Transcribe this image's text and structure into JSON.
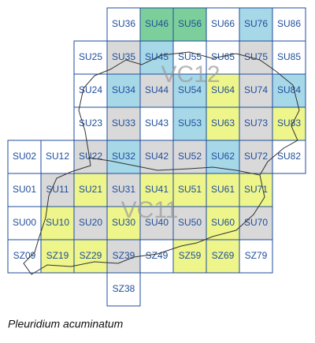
{
  "map": {
    "squares": [
      {
        "label": "SU36",
        "color": "#ffffff"
      },
      {
        "label": "SU46",
        "color": "#7ccf9a"
      },
      {
        "label": "SU56",
        "color": "#7ccf9a"
      },
      {
        "label": "SU66",
        "color": "#ffffff"
      },
      {
        "label": "SU76",
        "color": "#a6d8e8"
      },
      {
        "label": "SU86",
        "color": "#ffffff"
      },
      {
        "label": "SU25",
        "color": "#ffffff"
      },
      {
        "label": "SU35",
        "color": "#d9d9d9"
      },
      {
        "label": "SU45",
        "color": "#a6d8e8"
      },
      {
        "label": "SU55",
        "color": "#ffffff"
      },
      {
        "label": "SU65",
        "color": "#ffffff"
      },
      {
        "label": "SU75",
        "color": "#d9d9d9"
      },
      {
        "label": "SU85",
        "color": "#ffffff"
      },
      {
        "label": "SU24",
        "color": "#ffffff"
      },
      {
        "label": "SU34",
        "color": "#a6d8e8"
      },
      {
        "label": "SU44",
        "color": "#d9d9d9"
      },
      {
        "label": "SU54",
        "color": "#a6d8e8"
      },
      {
        "label": "SU64",
        "color": "#eef58a"
      },
      {
        "label": "SU74",
        "color": "#d9d9d9"
      },
      {
        "label": "SU84",
        "color": "#a6d8e8"
      },
      {
        "label": "SU23",
        "color": "#ffffff"
      },
      {
        "label": "SU33",
        "color": "#d9d9d9"
      },
      {
        "label": "SU43",
        "color": "#ffffff"
      },
      {
        "label": "SU53",
        "color": "#a6d8e8"
      },
      {
        "label": "SU63",
        "color": "#eef58a"
      },
      {
        "label": "SU73",
        "color": "#d9d9d9"
      },
      {
        "label": "SU83",
        "color": "#eef58a"
      },
      {
        "label": "SU02",
        "color": "#ffffff"
      },
      {
        "label": "SU12",
        "color": "#ffffff"
      },
      {
        "label": "SU22",
        "color": "#d9d9d9"
      },
      {
        "label": "SU32",
        "color": "#a6d8e8"
      },
      {
        "label": "SU42",
        "color": "#d9d9d9"
      },
      {
        "label": "SU52",
        "color": "#d9d9d9"
      },
      {
        "label": "SU62",
        "color": "#a6d8e8"
      },
      {
        "label": "SU72",
        "color": "#d9d9d9"
      },
      {
        "label": "SU82",
        "color": "#ffffff"
      },
      {
        "label": "SU01",
        "color": "#ffffff"
      },
      {
        "label": "SU11",
        "color": "#d9d9d9"
      },
      {
        "label": "SU21",
        "color": "#eef58a"
      },
      {
        "label": "SU31",
        "color": "#d9d9d9"
      },
      {
        "label": "SU41",
        "color": "#eef58a"
      },
      {
        "label": "SU51",
        "color": "#eef58a"
      },
      {
        "label": "SU61",
        "color": "#eef58a"
      },
      {
        "label": "SU71",
        "color": "#eef58a"
      },
      {
        "label": "SU00",
        "color": "#ffffff"
      },
      {
        "label": "SU10",
        "color": "#eef58a"
      },
      {
        "label": "SU20",
        "color": "#d9d9d9"
      },
      {
        "label": "SU30",
        "color": "#eef58a"
      },
      {
        "label": "SU40",
        "color": "#d9d9d9"
      },
      {
        "label": "SU50",
        "color": "#d9d9d9"
      },
      {
        "label": "SU60",
        "color": "#eef58a"
      },
      {
        "label": "SU70",
        "color": "#d9d9d9"
      },
      {
        "label": "SZ09",
        "color": "#ffffff"
      },
      {
        "label": "SZ19",
        "color": "#eef58a"
      },
      {
        "label": "SZ29",
        "color": "#eef58a"
      },
      {
        "label": "SZ39",
        "color": "#d9d9d9"
      },
      {
        "label": "SZ49",
        "color": "#ffffff"
      },
      {
        "label": "SZ59",
        "color": "#eef58a"
      },
      {
        "label": "SZ69",
        "color": "#eef58a"
      },
      {
        "label": "SZ79",
        "color": "#ffffff"
      },
      {
        "label": "SZ38",
        "color": "#ffffff"
      }
    ],
    "regions": [
      "VC12",
      "VC11"
    ],
    "caption": "Pleuridium acuminatum"
  }
}
